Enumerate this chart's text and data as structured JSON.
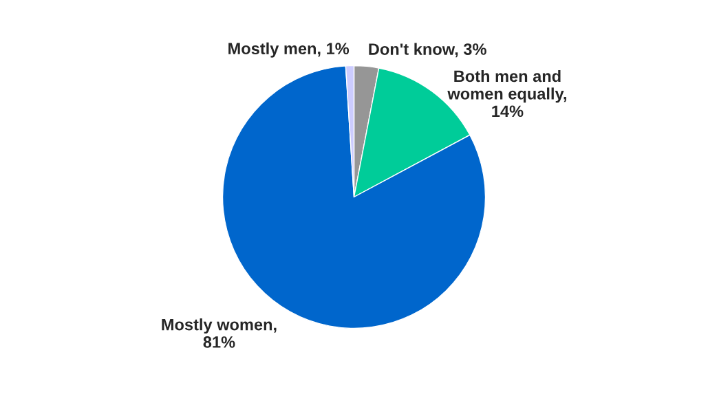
{
  "chart_data": {
    "type": "pie",
    "categories": [
      "Don't know, 3%",
      "Both men and women equally, 14%",
      "Mostly women, 81%",
      "Mostly men, 1%"
    ],
    "values": [
      3,
      14,
      81,
      1
    ],
    "colors": [
      "#969696",
      "#00cc99",
      "#0066cc",
      "#ccccff"
    ],
    "legend": false
  }
}
